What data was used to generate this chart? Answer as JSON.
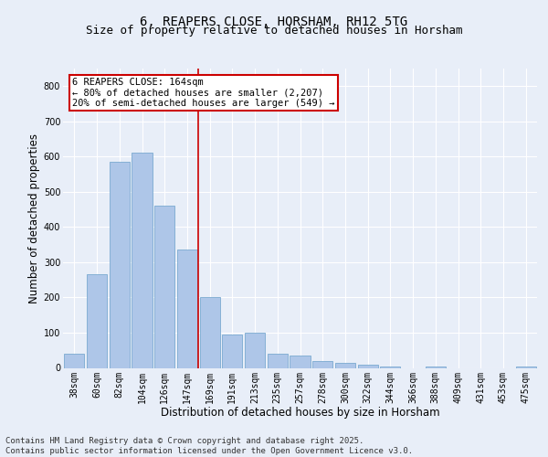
{
  "title": "6, REAPERS CLOSE, HORSHAM, RH12 5TG",
  "subtitle": "Size of property relative to detached houses in Horsham",
  "xlabel": "Distribution of detached houses by size in Horsham",
  "ylabel": "Number of detached properties",
  "categories": [
    "38sqm",
    "60sqm",
    "82sqm",
    "104sqm",
    "126sqm",
    "147sqm",
    "169sqm",
    "191sqm",
    "213sqm",
    "235sqm",
    "257sqm",
    "278sqm",
    "300sqm",
    "322sqm",
    "344sqm",
    "366sqm",
    "388sqm",
    "409sqm",
    "431sqm",
    "453sqm",
    "475sqm"
  ],
  "values": [
    40,
    265,
    585,
    610,
    460,
    335,
    200,
    95,
    100,
    40,
    35,
    20,
    15,
    8,
    5,
    0,
    5,
    0,
    0,
    0,
    5
  ],
  "bar_color": "#aec6e8",
  "bar_edge_color": "#7aaad0",
  "vline_index": 5.5,
  "annotation_text": "6 REAPERS CLOSE: 164sqm\n← 80% of detached houses are smaller (2,207)\n20% of semi-detached houses are larger (549) →",
  "annotation_box_color": "#ffffff",
  "annotation_box_edge_color": "#cc0000",
  "vline_color": "#cc0000",
  "ylim": [
    0,
    850
  ],
  "yticks": [
    0,
    100,
    200,
    300,
    400,
    500,
    600,
    700,
    800
  ],
  "background_color": "#e8eef8",
  "plot_background_color": "#e8eef8",
  "footer_text": "Contains HM Land Registry data © Crown copyright and database right 2025.\nContains public sector information licensed under the Open Government Licence v3.0.",
  "title_fontsize": 10,
  "subtitle_fontsize": 9,
  "xlabel_fontsize": 8.5,
  "ylabel_fontsize": 8.5,
  "tick_fontsize": 7,
  "annotation_fontsize": 7.5,
  "footer_fontsize": 6.5
}
